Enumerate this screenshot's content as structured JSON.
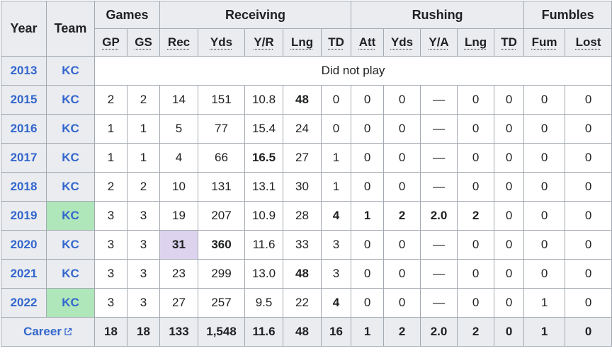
{
  "headers": {
    "year": "Year",
    "team": "Team",
    "groups": {
      "games": "Games",
      "receiving": "Receiving",
      "rushing": "Rushing",
      "fumbles": "Fumbles"
    },
    "sub": [
      "GP",
      "GS",
      "Rec",
      "Yds",
      "Y/R",
      "Lng",
      "TD",
      "Att",
      "Yds",
      "Y/A",
      "Lng",
      "TD",
      "Fum",
      "Lost"
    ]
  },
  "dnp": {
    "year": "2013",
    "team": "KC",
    "text": "Did not play"
  },
  "rows": [
    {
      "year": "2015",
      "team": "KC",
      "superbowl": false,
      "cells": [
        "2",
        "2",
        "14",
        "151",
        "10.8",
        "48",
        "0",
        "0",
        "0",
        "—",
        "0",
        "0",
        "0",
        "0"
      ],
      "bold": [
        5
      ],
      "highlight": []
    },
    {
      "year": "2016",
      "team": "KC",
      "superbowl": false,
      "cells": [
        "1",
        "1",
        "5",
        "77",
        "15.4",
        "24",
        "0",
        "0",
        "0",
        "—",
        "0",
        "0",
        "0",
        "0"
      ],
      "bold": [],
      "highlight": []
    },
    {
      "year": "2017",
      "team": "KC",
      "superbowl": false,
      "cells": [
        "1",
        "1",
        "4",
        "66",
        "16.5",
        "27",
        "1",
        "0",
        "0",
        "—",
        "0",
        "0",
        "0",
        "0"
      ],
      "bold": [
        4
      ],
      "highlight": []
    },
    {
      "year": "2018",
      "team": "KC",
      "superbowl": false,
      "cells": [
        "2",
        "2",
        "10",
        "131",
        "13.1",
        "30",
        "1",
        "0",
        "0",
        "—",
        "0",
        "0",
        "0",
        "0"
      ],
      "bold": [],
      "highlight": []
    },
    {
      "year": "2019",
      "team": "KC",
      "superbowl": true,
      "cells": [
        "3",
        "3",
        "19",
        "207",
        "10.9",
        "28",
        "4",
        "1",
        "2",
        "2.0",
        "2",
        "0",
        "0",
        "0"
      ],
      "bold": [
        6,
        7,
        8,
        9,
        10
      ],
      "highlight": []
    },
    {
      "year": "2020",
      "team": "KC",
      "superbowl": false,
      "cells": [
        "3",
        "3",
        "31",
        "360",
        "11.6",
        "33",
        "3",
        "0",
        "0",
        "—",
        "0",
        "0",
        "0",
        "0"
      ],
      "bold": [
        2,
        3
      ],
      "highlight": [
        2
      ]
    },
    {
      "year": "2021",
      "team": "KC",
      "superbowl": false,
      "cells": [
        "3",
        "3",
        "23",
        "299",
        "13.0",
        "48",
        "3",
        "0",
        "0",
        "—",
        "0",
        "0",
        "0",
        "0"
      ],
      "bold": [
        5
      ],
      "highlight": []
    },
    {
      "year": "2022",
      "team": "KC",
      "superbowl": true,
      "cells": [
        "3",
        "3",
        "27",
        "257",
        "9.5",
        "22",
        "4",
        "0",
        "0",
        "—",
        "0",
        "0",
        "1",
        "0"
      ],
      "bold": [
        6
      ],
      "highlight": []
    }
  ],
  "career": {
    "label": "Career",
    "icon": "external-link-icon",
    "cells": [
      "18",
      "18",
      "133",
      "1,548",
      "11.6",
      "48",
      "16",
      "1",
      "2",
      "2.0",
      "2",
      "0",
      "1",
      "0"
    ],
    "highlight": [
      2,
      3,
      6
    ]
  },
  "colors": {
    "link": "#3366cc",
    "header_bg": "#eaecf0",
    "superbowl": "#afe6ba",
    "league_lead": "#ddd3ee",
    "border": "#a2a9b1"
  }
}
